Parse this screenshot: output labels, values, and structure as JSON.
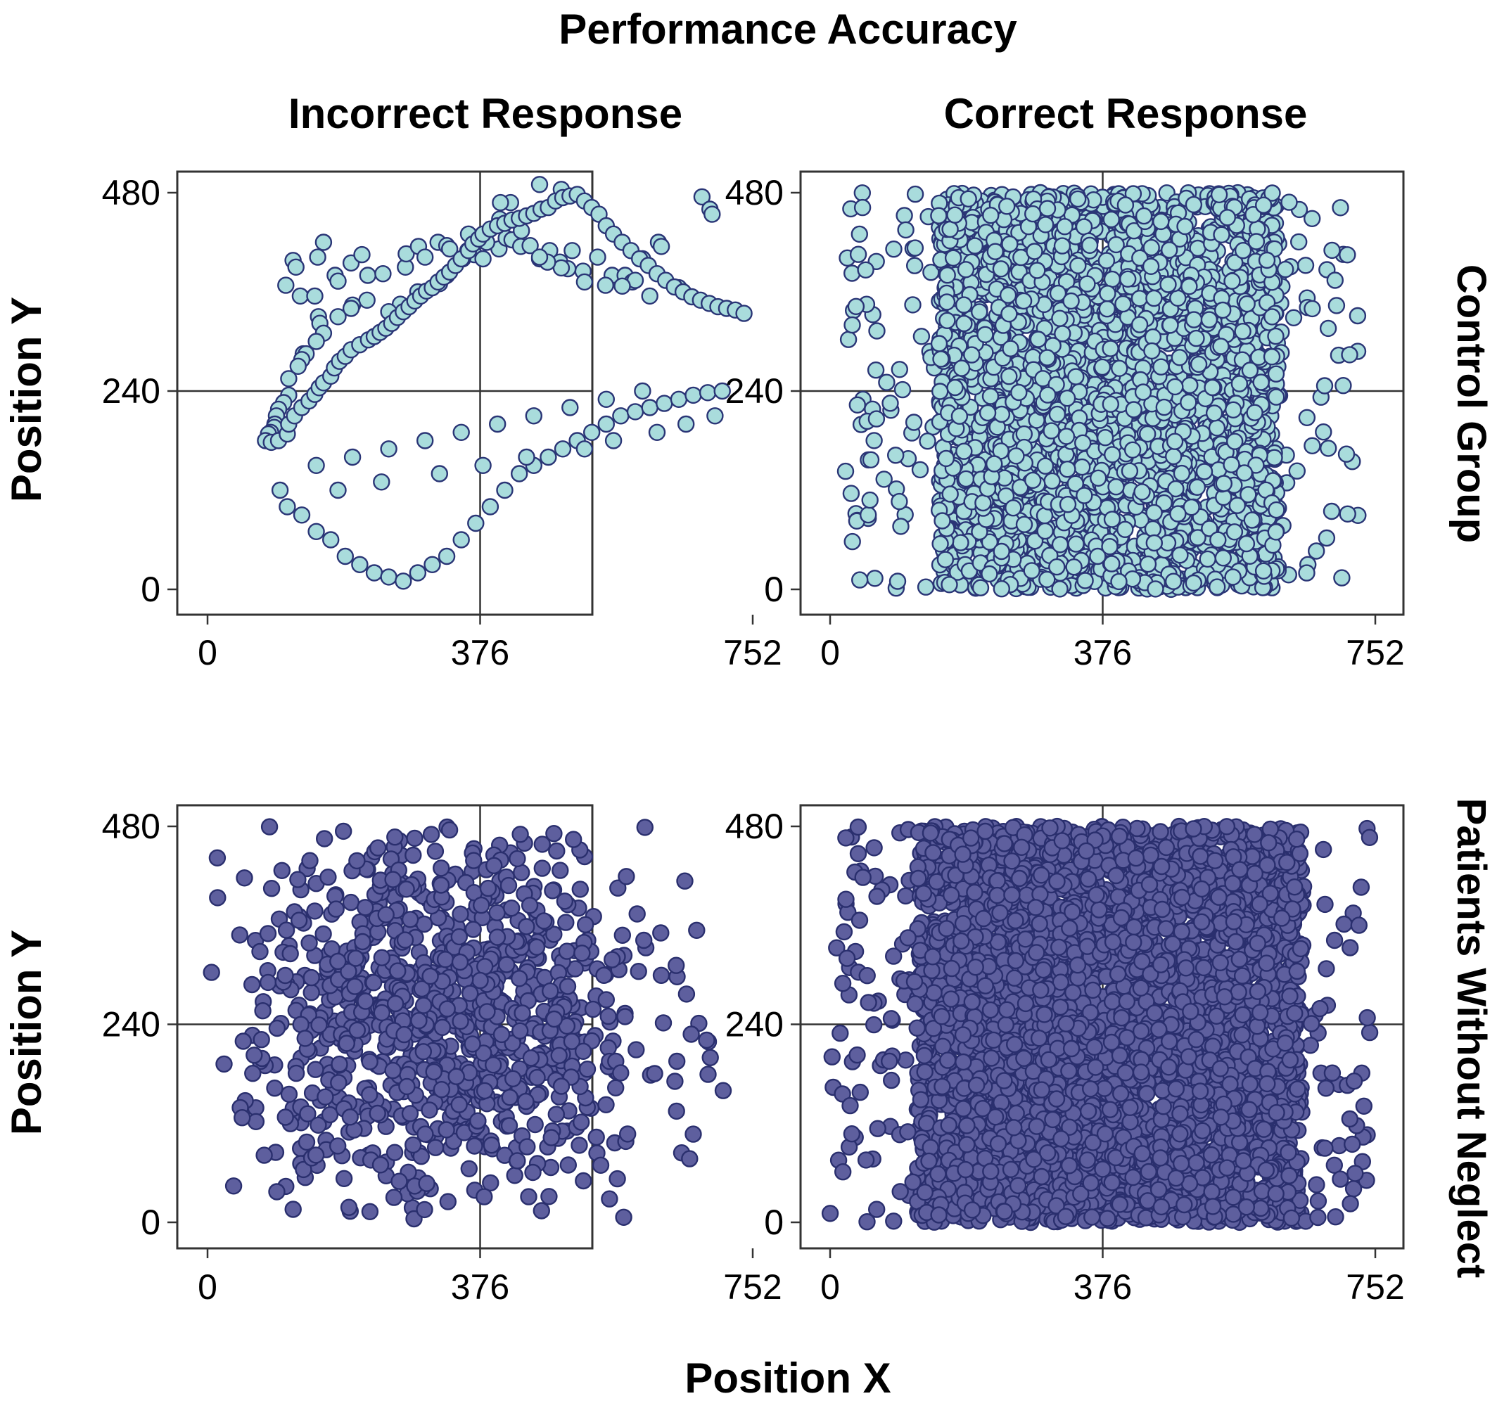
{
  "title": "Performance Accuracy",
  "column_titles": [
    "Incorrect Response",
    "Correct Response"
  ],
  "row_labels": [
    "Control Group",
    "Patients Without Neglect"
  ],
  "x_axis_label": "Position X",
  "y_axis_label": "Position Y",
  "colors": {
    "control_fill": "#a9dcdc",
    "control_stroke": "#2a3576",
    "patient_fill": "#5e5f9e",
    "patient_stroke": "#2a2f6e",
    "axis": "#333333"
  },
  "chart_data": [
    {
      "type": "scatter",
      "group": "Control Group",
      "response": "Incorrect Response",
      "xlim": [
        0,
        752
      ],
      "ylim": [
        0,
        480
      ],
      "x_ticks": [
        "0",
        "376",
        "752"
      ],
      "y_ticks": [
        "0",
        "240",
        "480"
      ],
      "reference_lines": {
        "x": 376,
        "y": 240
      },
      "marker_style": "control",
      "approx_point_count": 230,
      "points": [
        [
          108,
          368
        ],
        [
          132,
          285
        ],
        [
          153,
          330
        ],
        [
          155,
          322
        ],
        [
          118,
          398
        ],
        [
          122,
          390
        ],
        [
          128,
          355
        ],
        [
          148,
          355
        ],
        [
          176,
          380
        ],
        [
          180,
          373
        ],
        [
          152,
          402
        ],
        [
          160,
          420
        ],
        [
          198,
          395
        ],
        [
          213,
          405
        ],
        [
          221,
          380
        ],
        [
          242,
          382
        ],
        [
          273,
          390
        ],
        [
          274,
          406
        ],
        [
          291,
          415
        ],
        [
          300,
          402
        ],
        [
          318,
          420
        ],
        [
          330,
          416
        ],
        [
          334,
          412
        ],
        [
          360,
          430
        ],
        [
          368,
          405
        ],
        [
          380,
          400
        ],
        [
          402,
          412
        ],
        [
          412,
          425
        ],
        [
          420,
          423
        ],
        [
          432,
          415
        ],
        [
          445,
          416
        ],
        [
          458,
          400
        ],
        [
          472,
          410
        ],
        [
          486,
          396
        ],
        [
          503,
          410
        ],
        [
          518,
          385
        ],
        [
          538,
          402
        ],
        [
          558,
          380
        ],
        [
          576,
          380
        ],
        [
          586,
          372
        ],
        [
          590,
          374
        ],
        [
          610,
          355
        ],
        [
          650,
          365
        ],
        [
          682,
          475
        ],
        [
          693,
          460
        ],
        [
          696,
          454
        ],
        [
          622,
          420
        ],
        [
          626,
          415
        ],
        [
          600,
          400
        ],
        [
          572,
          367
        ],
        [
          549,
          368
        ],
        [
          520,
          372
        ],
        [
          497,
          388
        ],
        [
          488,
          389
        ],
        [
          469,
          396
        ],
        [
          458,
          402
        ],
        [
          433,
          434
        ],
        [
          458,
          490
        ],
        [
          488,
          484
        ],
        [
          418,
          468
        ],
        [
          404,
          468
        ],
        [
          403,
          448
        ],
        [
          385,
          420
        ],
        [
          359,
          410
        ],
        [
          352,
          400
        ],
        [
          330,
          380
        ],
        [
          320,
          370
        ],
        [
          290,
          360
        ],
        [
          276,
          342
        ],
        [
          266,
          345
        ],
        [
          250,
          336
        ],
        [
          220,
          350
        ],
        [
          200,
          344
        ],
        [
          198,
          340
        ],
        [
          180,
          330
        ],
        [
          160,
          310
        ],
        [
          150,
          300
        ],
        [
          136,
          285
        ],
        [
          130,
          278
        ],
        [
          125,
          270
        ],
        [
          112,
          255
        ],
        [
          112,
          235
        ],
        [
          105,
          226
        ],
        [
          98,
          218
        ],
        [
          95,
          210
        ],
        [
          93,
          200
        ],
        [
          92,
          196
        ],
        [
          87,
          190
        ],
        [
          84,
          188
        ],
        [
          80,
          180
        ],
        [
          88,
          178
        ],
        [
          98,
          180
        ],
        [
          110,
          188
        ],
        [
          112,
          200
        ],
        [
          120,
          210
        ],
        [
          130,
          220
        ],
        [
          140,
          228
        ],
        [
          148,
          236
        ],
        [
          154,
          244
        ],
        [
          160,
          250
        ],
        [
          170,
          258
        ],
        [
          175,
          268
        ],
        [
          182,
          276
        ],
        [
          190,
          282
        ],
        [
          198,
          290
        ],
        [
          210,
          296
        ],
        [
          222,
          302
        ],
        [
          230,
          306
        ],
        [
          238,
          311
        ],
        [
          246,
          316
        ],
        [
          254,
          322
        ],
        [
          262,
          329
        ],
        [
          270,
          336
        ],
        [
          278,
          342
        ],
        [
          286,
          349
        ],
        [
          294,
          355
        ],
        [
          302,
          361
        ],
        [
          310,
          365
        ],
        [
          318,
          372
        ],
        [
          326,
          378
        ],
        [
          334,
          384
        ],
        [
          342,
          392
        ],
        [
          350,
          400
        ],
        [
          360,
          410
        ],
        [
          366,
          418
        ],
        [
          374,
          424
        ],
        [
          380,
          430
        ],
        [
          390,
          436
        ],
        [
          400,
          440
        ],
        [
          410,
          443
        ],
        [
          420,
          447
        ],
        [
          430,
          449
        ],
        [
          440,
          452
        ],
        [
          450,
          455
        ],
        [
          460,
          460
        ],
        [
          470,
          462
        ],
        [
          480,
          470
        ],
        [
          490,
          474
        ],
        [
          500,
          476
        ],
        [
          510,
          478
        ],
        [
          520,
          470
        ],
        [
          530,
          462
        ],
        [
          540,
          454
        ],
        [
          550,
          440
        ],
        [
          560,
          430
        ],
        [
          572,
          420
        ],
        [
          584,
          410
        ],
        [
          596,
          400
        ],
        [
          608,
          392
        ],
        [
          620,
          382
        ],
        [
          632,
          374
        ],
        [
          644,
          366
        ],
        [
          656,
          360
        ],
        [
          668,
          354
        ],
        [
          680,
          350
        ],
        [
          692,
          346
        ],
        [
          704,
          342
        ],
        [
          716,
          340
        ],
        [
          728,
          338
        ],
        [
          740,
          334
        ],
        [
          100,
          120
        ],
        [
          110,
          100
        ],
        [
          130,
          90
        ],
        [
          150,
          70
        ],
        [
          170,
          60
        ],
        [
          190,
          40
        ],
        [
          210,
          30
        ],
        [
          230,
          20
        ],
        [
          250,
          15
        ],
        [
          270,
          10
        ],
        [
          290,
          20
        ],
        [
          310,
          30
        ],
        [
          330,
          40
        ],
        [
          350,
          60
        ],
        [
          370,
          80
        ],
        [
          390,
          100
        ],
        [
          410,
          120
        ],
        [
          430,
          140
        ],
        [
          450,
          150
        ],
        [
          470,
          160
        ],
        [
          490,
          170
        ],
        [
          510,
          180
        ],
        [
          530,
          190
        ],
        [
          550,
          200
        ],
        [
          570,
          210
        ],
        [
          590,
          215
        ],
        [
          610,
          220
        ],
        [
          630,
          225
        ],
        [
          650,
          230
        ],
        [
          670,
          235
        ],
        [
          690,
          238
        ],
        [
          710,
          240
        ],
        [
          150,
          150
        ],
        [
          200,
          160
        ],
        [
          250,
          170
        ],
        [
          300,
          180
        ],
        [
          350,
          190
        ],
        [
          400,
          200
        ],
        [
          450,
          210
        ],
        [
          500,
          220
        ],
        [
          550,
          230
        ],
        [
          600,
          240
        ],
        [
          180,
          120
        ],
        [
          240,
          130
        ],
        [
          320,
          140
        ],
        [
          380,
          150
        ],
        [
          440,
          160
        ],
        [
          520,
          170
        ],
        [
          560,
          180
        ],
        [
          620,
          190
        ],
        [
          660,
          200
        ],
        [
          700,
          210
        ]
      ]
    },
    {
      "type": "scatter",
      "group": "Control Group",
      "response": "Correct Response",
      "xlim": [
        0,
        752
      ],
      "ylim": [
        0,
        480
      ],
      "x_ticks": [
        "0",
        "376",
        "752"
      ],
      "y_ticks": [
        "0",
        "240",
        "480"
      ],
      "reference_lines": {
        "x": 376,
        "y": 240
      },
      "marker_style": "control",
      "approx_point_count": 3200,
      "points": [],
      "density": {
        "x_range_dense": [
          150,
          620
        ],
        "x_range_sparse": [
          20,
          730
        ],
        "y_range": [
          0,
          480
        ]
      }
    },
    {
      "type": "scatter",
      "group": "Patients Without Neglect",
      "response": "Incorrect Response",
      "xlim": [
        0,
        752
      ],
      "ylim": [
        0,
        480
      ],
      "x_ticks": [
        "0",
        "376",
        "752"
      ],
      "y_ticks": [
        "0",
        "240",
        "480"
      ],
      "reference_lines": {
        "x": 376,
        "y": 240
      },
      "marker_style": "patient",
      "approx_point_count": 1000,
      "points": [],
      "density": {
        "center": [
          330,
          250
        ],
        "spread": [
          140,
          120
        ],
        "x_range": [
          0,
          720
        ],
        "y_range": [
          0,
          480
        ]
      }
    },
    {
      "type": "scatter",
      "group": "Patients Without Neglect",
      "response": "Correct Response",
      "xlim": [
        0,
        752
      ],
      "ylim": [
        0,
        480
      ],
      "x_ticks": [
        "0",
        "376",
        "752"
      ],
      "y_ticks": [
        "0",
        "240",
        "480"
      ],
      "reference_lines": {
        "x": 376,
        "y": 240
      },
      "marker_style": "patient",
      "approx_point_count": 4200,
      "points": [],
      "density": {
        "x_range_dense": [
          120,
          650
        ],
        "x_range_sparse": [
          0,
          745
        ],
        "y_range": [
          0,
          480
        ]
      }
    }
  ]
}
